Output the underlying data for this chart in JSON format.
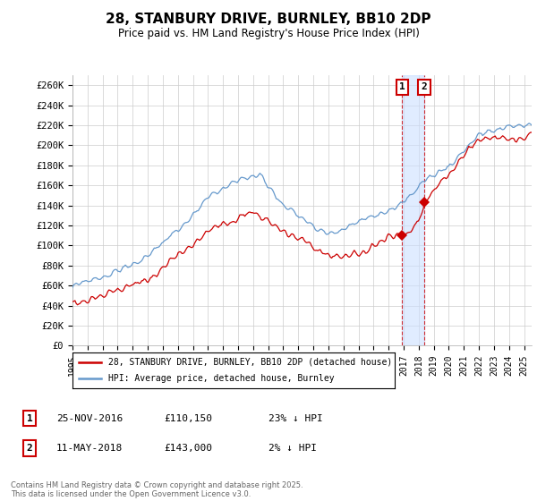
{
  "title": "28, STANBURY DRIVE, BURNLEY, BB10 2DP",
  "subtitle": "Price paid vs. HM Land Registry's House Price Index (HPI)",
  "ylabel_ticks": [
    "£0",
    "£20K",
    "£40K",
    "£60K",
    "£80K",
    "£100K",
    "£120K",
    "£140K",
    "£160K",
    "£180K",
    "£200K",
    "£220K",
    "£240K",
    "£260K"
  ],
  "ytick_vals": [
    0,
    20000,
    40000,
    60000,
    80000,
    100000,
    120000,
    140000,
    160000,
    180000,
    200000,
    220000,
    240000,
    260000
  ],
  "ylim": [
    0,
    270000
  ],
  "xlim_start": 1995.0,
  "xlim_end": 2025.5,
  "legend1": "28, STANBURY DRIVE, BURNLEY, BB10 2DP (detached house)",
  "legend2": "HPI: Average price, detached house, Burnley",
  "sale1_date": "25-NOV-2016",
  "sale1_price": "£110,150",
  "sale1_note": "23% ↓ HPI",
  "sale2_date": "11-MAY-2018",
  "sale2_price": "£143,000",
  "sale2_note": "2% ↓ HPI",
  "sale1_x": 2016.9,
  "sale2_x": 2018.37,
  "sale1_y": 110150,
  "sale2_y": 143000,
  "footer": "Contains HM Land Registry data © Crown copyright and database right 2025.\nThis data is licensed under the Open Government Licence v3.0.",
  "red_color": "#cc0000",
  "blue_color": "#6699cc",
  "vline_color": "#cc0000",
  "shade_color": "#cce0ff",
  "bg_color": "#ffffff",
  "grid_color": "#cccccc"
}
